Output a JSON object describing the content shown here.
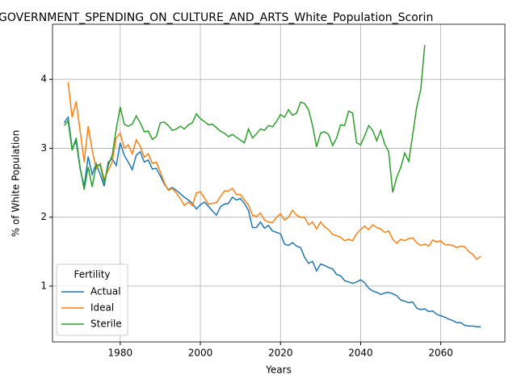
{
  "chart_data": {
    "type": "line",
    "title": "GOVERNMENT_SPENDING_ON_CULTURE_AND_ARTS_White_Population_Scorin",
    "xlabel": "Years",
    "ylabel": "% of White Population",
    "x": [
      1966,
      1967,
      1968,
      1969,
      1970,
      1971,
      1972,
      1973,
      1974,
      1975,
      1976,
      1977,
      1978,
      1979,
      1980,
      1981,
      1982,
      1983,
      1984,
      1985,
      1986,
      1987,
      1988,
      1989,
      1990,
      1991,
      1992,
      1993,
      1994,
      1995,
      1996,
      1997,
      1998,
      1999,
      2000,
      2001,
      2002,
      2003,
      2004,
      2005,
      2006,
      2007,
      2008,
      2009,
      2010,
      2011,
      2012,
      2013,
      2014,
      2015,
      2016,
      2017,
      2018,
      2019,
      2020,
      2021,
      2022,
      2023,
      2024,
      2025,
      2026,
      2027,
      2028,
      2029,
      2030,
      2031,
      2032,
      2033,
      2034,
      2035,
      2036,
      2037,
      2038,
      2039,
      2040,
      2041,
      2042,
      2043,
      2044,
      2045,
      2046,
      2047,
      2048,
      2049,
      2050,
      2051,
      2052,
      2053,
      2054,
      2055,
      2056,
      2057,
      2058,
      2059,
      2060,
      2061,
      2062,
      2063,
      2064,
      2065,
      2066,
      2067,
      2068,
      2069,
      2070
    ],
    "series": [
      {
        "name": "Actual",
        "color": "#1f77b4",
        "values": [
          3.37,
          3.45,
          3.0,
          3.1,
          2.7,
          2.45,
          2.88,
          2.62,
          2.78,
          2.62,
          2.45,
          2.8,
          2.85,
          2.75,
          3.08,
          2.9,
          2.8,
          2.69,
          2.9,
          2.95,
          2.8,
          2.83,
          2.7,
          2.71,
          2.6,
          2.48,
          2.4,
          2.43,
          2.39,
          2.34,
          2.29,
          2.25,
          2.2,
          2.12,
          2.18,
          2.22,
          2.16,
          2.09,
          2.03,
          2.15,
          2.19,
          2.2,
          2.29,
          2.25,
          2.27,
          2.2,
          2.1,
          1.85,
          1.85,
          1.93,
          1.84,
          1.88,
          1.8,
          1.78,
          1.76,
          1.61,
          1.59,
          1.63,
          1.58,
          1.56,
          1.42,
          1.33,
          1.36,
          1.22,
          1.32,
          1.3,
          1.27,
          1.25,
          1.17,
          1.15,
          1.08,
          1.06,
          1.04,
          1.06,
          1.09,
          1.05,
          0.97,
          0.93,
          0.91,
          0.88,
          0.9,
          0.91,
          0.89,
          0.86,
          0.8,
          0.78,
          0.76,
          0.77,
          0.68,
          0.66,
          0.67,
          0.63,
          0.64,
          0.59,
          0.57,
          0.55,
          0.52,
          0.5,
          0.47,
          0.47,
          0.43,
          0.42,
          0.42,
          0.41,
          0.41
        ]
      },
      {
        "name": "Ideal",
        "color": "#ff7f0e",
        "values": [
          null,
          3.96,
          3.45,
          3.68,
          3.25,
          2.8,
          3.32,
          2.97,
          2.7,
          2.78,
          2.55,
          2.68,
          2.8,
          3.15,
          3.22,
          3.0,
          3.05,
          2.92,
          3.12,
          3.03,
          2.87,
          2.92,
          2.78,
          2.8,
          2.66,
          2.5,
          2.39,
          2.42,
          2.35,
          2.27,
          2.17,
          2.22,
          2.17,
          2.35,
          2.37,
          2.28,
          2.19,
          2.2,
          2.21,
          2.3,
          2.38,
          2.38,
          2.42,
          2.33,
          2.33,
          2.25,
          2.18,
          2.03,
          2.01,
          2.06,
          1.96,
          1.93,
          1.92,
          2.0,
          2.05,
          1.96,
          2.0,
          2.1,
          2.03,
          2.0,
          2.0,
          1.89,
          1.93,
          1.83,
          1.93,
          1.86,
          1.82,
          1.75,
          1.73,
          1.71,
          1.66,
          1.68,
          1.66,
          1.76,
          1.82,
          1.87,
          1.82,
          1.89,
          1.85,
          1.83,
          1.78,
          1.8,
          1.68,
          1.62,
          1.68,
          1.66,
          1.69,
          1.7,
          1.63,
          1.59,
          1.61,
          1.58,
          1.67,
          1.64,
          1.66,
          1.6,
          1.6,
          1.59,
          1.56,
          1.58,
          1.57,
          1.5,
          1.46,
          1.39,
          1.43
        ]
      },
      {
        "name": "Sterile",
        "color": "#2ca02c",
        "values": [
          3.33,
          3.4,
          2.97,
          3.15,
          2.72,
          2.4,
          2.73,
          2.44,
          2.75,
          2.76,
          2.5,
          2.75,
          2.9,
          3.28,
          3.6,
          3.35,
          3.32,
          3.35,
          3.47,
          3.37,
          3.24,
          3.25,
          3.13,
          3.17,
          3.37,
          3.38,
          3.33,
          3.26,
          3.28,
          3.32,
          3.28,
          3.34,
          3.37,
          3.5,
          3.43,
          3.39,
          3.34,
          3.35,
          3.3,
          3.25,
          3.22,
          3.17,
          3.2,
          3.16,
          3.12,
          3.08,
          3.28,
          3.15,
          3.21,
          3.28,
          3.26,
          3.33,
          3.31,
          3.39,
          3.49,
          3.45,
          3.56,
          3.48,
          3.51,
          3.67,
          3.65,
          3.56,
          3.33,
          3.02,
          3.22,
          3.24,
          3.2,
          3.04,
          3.15,
          3.34,
          3.33,
          3.54,
          3.51,
          3.08,
          3.05,
          3.18,
          3.33,
          3.26,
          3.11,
          3.26,
          3.06,
          2.95,
          2.36,
          2.58,
          2.72,
          2.93,
          2.81,
          3.2,
          3.6,
          3.85,
          4.5,
          null,
          null,
          null,
          null,
          null,
          null,
          null,
          null,
          null,
          null,
          null,
          null,
          null,
          null
        ]
      }
    ],
    "xlim": [
      1963.1,
      2076
    ],
    "ylim": [
      0.19,
      4.8
    ],
    "xticks": [
      1980,
      2000,
      2020,
      2040,
      2060
    ],
    "yticks": [
      1,
      2,
      3,
      4
    ],
    "grid": true,
    "legend_title": "Fertility",
    "legend": "lower left"
  }
}
